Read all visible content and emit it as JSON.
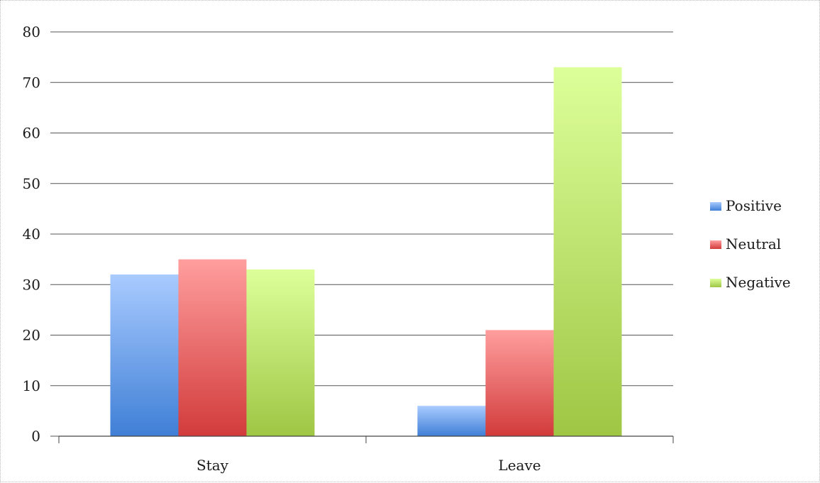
{
  "chart_data": {
    "type": "bar",
    "categories": [
      "Stay",
      "Leave"
    ],
    "series": [
      {
        "name": "Positive",
        "values": [
          32,
          6
        ],
        "color_top": "#a9cbff",
        "color_bottom": "#3f7fd6"
      },
      {
        "name": "Neutral",
        "values": [
          35,
          21
        ],
        "color_top": "#ff9e9e",
        "color_bottom": "#d23b3b"
      },
      {
        "name": "Negative",
        "values": [
          33,
          73
        ],
        "color_top": "#ddff9a",
        "color_bottom": "#9fc644"
      }
    ],
    "title": "",
    "xlabel": "",
    "ylabel": "",
    "ylim": [
      0,
      80
    ],
    "yticks": [
      0,
      10,
      20,
      30,
      40,
      50,
      60,
      70,
      80
    ],
    "grid": true,
    "legend_position": "right"
  }
}
